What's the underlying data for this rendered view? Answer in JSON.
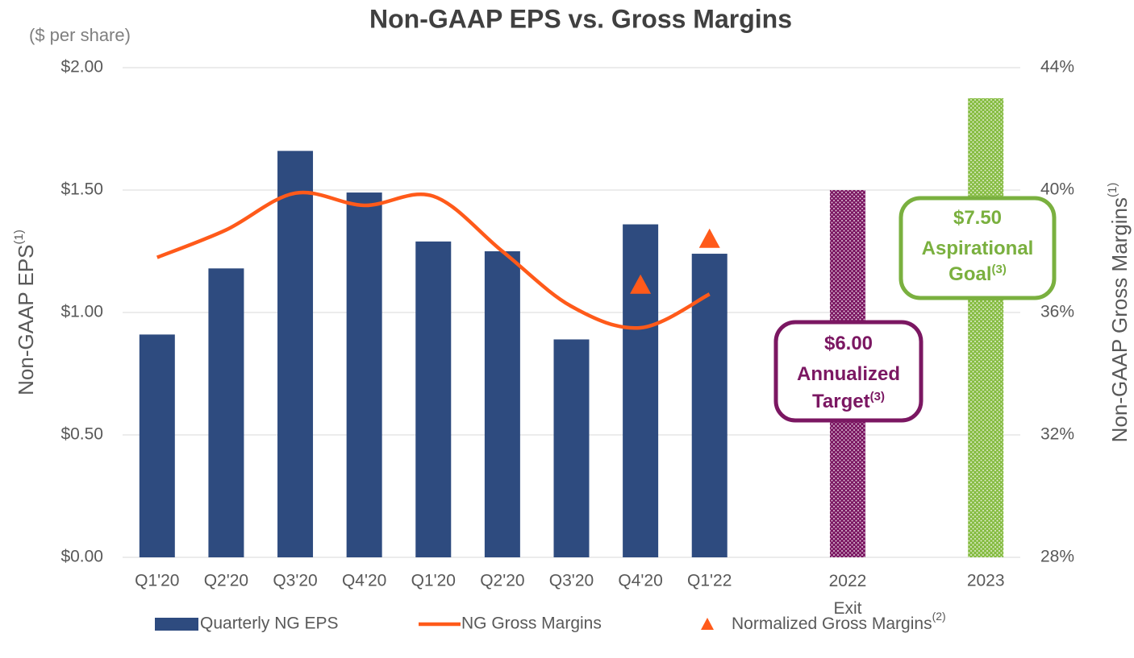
{
  "chart_data": {
    "type": "bar",
    "title": "Non-GAAP EPS vs. Gross Margins",
    "unit_label": "($ per share)",
    "ylabel": "Non-GAAP EPS",
    "ylabel_note": "(1)",
    "y2label": "Non-GAAP Gross Margins",
    "y2label_note": "(1)",
    "categories": [
      "Q1'20",
      "Q2'20",
      "Q3'20",
      "Q4'20",
      "Q1'20",
      "Q2'20",
      "Q3'20",
      "Q4'20",
      "Q1'22",
      null,
      "2022 Exit",
      null,
      "2023"
    ],
    "ylim": [
      0,
      2
    ],
    "yticks": [
      {
        "value": 0,
        "label": "$0.00"
      },
      {
        "value": 0.5,
        "label": "$0.50"
      },
      {
        "value": 1,
        "label": "$1.00"
      },
      {
        "value": 1.5,
        "label": "$1.50"
      },
      {
        "value": 2,
        "label": "$2.00"
      }
    ],
    "y2lim": [
      28,
      44
    ],
    "y2ticks": [
      {
        "value": 28,
        "label": "28%"
      },
      {
        "value": 32,
        "label": "32%"
      },
      {
        "value": 36,
        "label": "36%"
      },
      {
        "value": 40,
        "label": "40%"
      },
      {
        "value": 44,
        "label": "44%"
      }
    ],
    "grid": true,
    "series": [
      {
        "name": "Quarterly NG EPS",
        "type": "bar",
        "color": "#2E4B7F",
        "values": [
          0.91,
          1.18,
          1.66,
          1.49,
          1.29,
          1.25,
          0.89,
          1.36,
          1.24,
          null,
          1.5,
          null,
          1.875
        ],
        "colors": [
          "#2E4B7F",
          "#2E4B7F",
          "#2E4B7F",
          "#2E4B7F",
          "#2E4B7F",
          "#2E4B7F",
          "#2E4B7F",
          "#2E4B7F",
          "#2E4B7F",
          null,
          "#7B1762",
          null,
          "#86BC42"
        ],
        "patterned": [
          false,
          false,
          false,
          false,
          false,
          false,
          false,
          false,
          false,
          false,
          true,
          false,
          true
        ]
      },
      {
        "name": "NG Gross Margins",
        "type": "line",
        "axis": "y2",
        "color": "#FF5A1A",
        "values": [
          37.8,
          38.7,
          39.9,
          39.5,
          39.8,
          38.0,
          36.2,
          35.5,
          36.6,
          null,
          null,
          null,
          null
        ]
      },
      {
        "name": "Normalized Gross Margins",
        "name_note": "(2)",
        "type": "triangle",
        "axis": "y2",
        "color": "#FF5A1A",
        "values": [
          null,
          null,
          null,
          null,
          null,
          null,
          null,
          36.9,
          38.4,
          null,
          null,
          null,
          null
        ]
      }
    ],
    "annotations": [
      {
        "lines": [
          "$6.00",
          "Annualized",
          "Target"
        ],
        "note": "(3)",
        "color": "#7B1762"
      },
      {
        "lines": [
          "$7.50",
          "Aspirational",
          "Goal"
        ],
        "note": "(3)",
        "color": "#7AB03F"
      }
    ]
  }
}
